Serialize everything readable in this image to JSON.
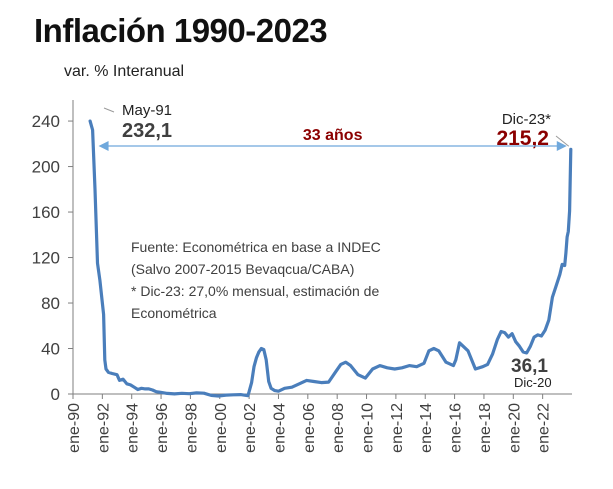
{
  "chart_data": {
    "type": "line",
    "title": "Inflación 1990-2023",
    "subtitle": "var. % Interanual",
    "xlabel": "",
    "ylabel": "",
    "ylim": [
      0,
      255
    ],
    "yticks": [
      0,
      40,
      80,
      120,
      160,
      200,
      240
    ],
    "xtick_labels": [
      "ene-90",
      "ene-92",
      "ene-94",
      "ene-96",
      "ene-98",
      "ene-00",
      "ene-02",
      "ene-04",
      "ene-06",
      "ene-08",
      "ene-10",
      "ene-12",
      "ene-14",
      "ene-16",
      "ene-18",
      "ene-20",
      "ene-22"
    ],
    "grid": false,
    "series": [
      {
        "color": "#4a7ebb",
        "points": [
          [
            "1991-03",
            240
          ],
          [
            "1991-05",
            232.1
          ],
          [
            "1991-07",
            180
          ],
          [
            "1991-09",
            115
          ],
          [
            "1991-11",
            100
          ],
          [
            "1992-02",
            70
          ],
          [
            "1992-03",
            30
          ],
          [
            "1992-04",
            22
          ],
          [
            "1992-06",
            19
          ],
          [
            "1992-09",
            18
          ],
          [
            "1993-01",
            17
          ],
          [
            "1993-03",
            12
          ],
          [
            "1993-06",
            13
          ],
          [
            "1993-09",
            9
          ],
          [
            "1993-12",
            8
          ],
          [
            "1994-03",
            6
          ],
          [
            "1994-06",
            4
          ],
          [
            "1994-09",
            5
          ],
          [
            "1994-12",
            4.5
          ],
          [
            "1995-03",
            4.5
          ],
          [
            "1995-06",
            3.5
          ],
          [
            "1995-09",
            2
          ],
          [
            "1995-12",
            1.6
          ],
          [
            "1996-06",
            0.5
          ],
          [
            "1996-12",
            0.1
          ],
          [
            "1997-06",
            0.6
          ],
          [
            "1997-12",
            0.3
          ],
          [
            "1998-06",
            1
          ],
          [
            "1998-12",
            0.7
          ],
          [
            "1999-06",
            -1.2
          ],
          [
            "1999-12",
            -1.8
          ],
          [
            "2000-06",
            -1
          ],
          [
            "2000-12",
            -0.7
          ],
          [
            "2001-06",
            -0.5
          ],
          [
            "2001-12",
            -1.5
          ],
          [
            "2002-01",
            2
          ],
          [
            "2002-03",
            10
          ],
          [
            "2002-05",
            24
          ],
          [
            "2002-07",
            32
          ],
          [
            "2002-09",
            37
          ],
          [
            "2002-11",
            40
          ],
          [
            "2003-01",
            39
          ],
          [
            "2003-03",
            30
          ],
          [
            "2003-05",
            11
          ],
          [
            "2003-07",
            5
          ],
          [
            "2003-10",
            3
          ],
          [
            "2004-01",
            2.5
          ],
          [
            "2004-06",
            5
          ],
          [
            "2004-12",
            6
          ],
          [
            "2005-06",
            9
          ],
          [
            "2005-12",
            12
          ],
          [
            "2006-06",
            11
          ],
          [
            "2006-12",
            10
          ],
          [
            "2007-06",
            10.5
          ],
          [
            "2007-12",
            20
          ],
          [
            "2008-04",
            26
          ],
          [
            "2008-08",
            28
          ],
          [
            "2008-12",
            25
          ],
          [
            "2009-06",
            17
          ],
          [
            "2009-12",
            14
          ],
          [
            "2010-06",
            22
          ],
          [
            "2010-12",
            25
          ],
          [
            "2011-06",
            23
          ],
          [
            "2011-12",
            22
          ],
          [
            "2012-06",
            23
          ],
          [
            "2012-12",
            25
          ],
          [
            "2013-06",
            24
          ],
          [
            "2013-12",
            27
          ],
          [
            "2014-04",
            38
          ],
          [
            "2014-08",
            40
          ],
          [
            "2014-12",
            38
          ],
          [
            "2015-06",
            28
          ],
          [
            "2015-12",
            25
          ],
          [
            "2016-02",
            30
          ],
          [
            "2016-05",
            45
          ],
          [
            "2016-08",
            42
          ],
          [
            "2016-12",
            38
          ],
          [
            "2017-06",
            22
          ],
          [
            "2017-12",
            24
          ],
          [
            "2018-04",
            26
          ],
          [
            "2018-08",
            35
          ],
          [
            "2018-12",
            48
          ],
          [
            "2019-03",
            55
          ],
          [
            "2019-06",
            54
          ],
          [
            "2019-09",
            50
          ],
          [
            "2019-12",
            53
          ],
          [
            "2020-03",
            46
          ],
          [
            "2020-06",
            42
          ],
          [
            "2020-09",
            37
          ],
          [
            "2020-12",
            36.1
          ],
          [
            "2021-03",
            42
          ],
          [
            "2021-06",
            50
          ],
          [
            "2021-09",
            52
          ],
          [
            "2021-12",
            51
          ],
          [
            "2022-03",
            56
          ],
          [
            "2022-06",
            65
          ],
          [
            "2022-09",
            85
          ],
          [
            "2022-12",
            95
          ],
          [
            "2023-03",
            105
          ],
          [
            "2023-05",
            114
          ],
          [
            "2023-07",
            113
          ],
          [
            "2023-08",
            124
          ],
          [
            "2023-09",
            138
          ],
          [
            "2023-10",
            143
          ],
          [
            "2023-11",
            161
          ],
          [
            "2023-12",
            215.2
          ]
        ]
      }
    ],
    "annotations": {
      "start": {
        "date": "1991-05",
        "label": "May-91",
        "value_text": "232,1"
      },
      "end": {
        "date": "2023-12",
        "label": "Dic-23*",
        "value_text": "215,2"
      },
      "span": {
        "text": "33 años",
        "color": "#8b0000"
      },
      "low": {
        "date": "2020-12",
        "value_text": "36,1",
        "label": "Dic-20"
      },
      "note": [
        "Fuente: Econométrica en base a INDEC",
        "(Salvo 2007-2015 Bevaqcua/CABA)",
        "* Dic-23: 27,0% mensual, estimación de",
        "Econométrica"
      ]
    }
  }
}
